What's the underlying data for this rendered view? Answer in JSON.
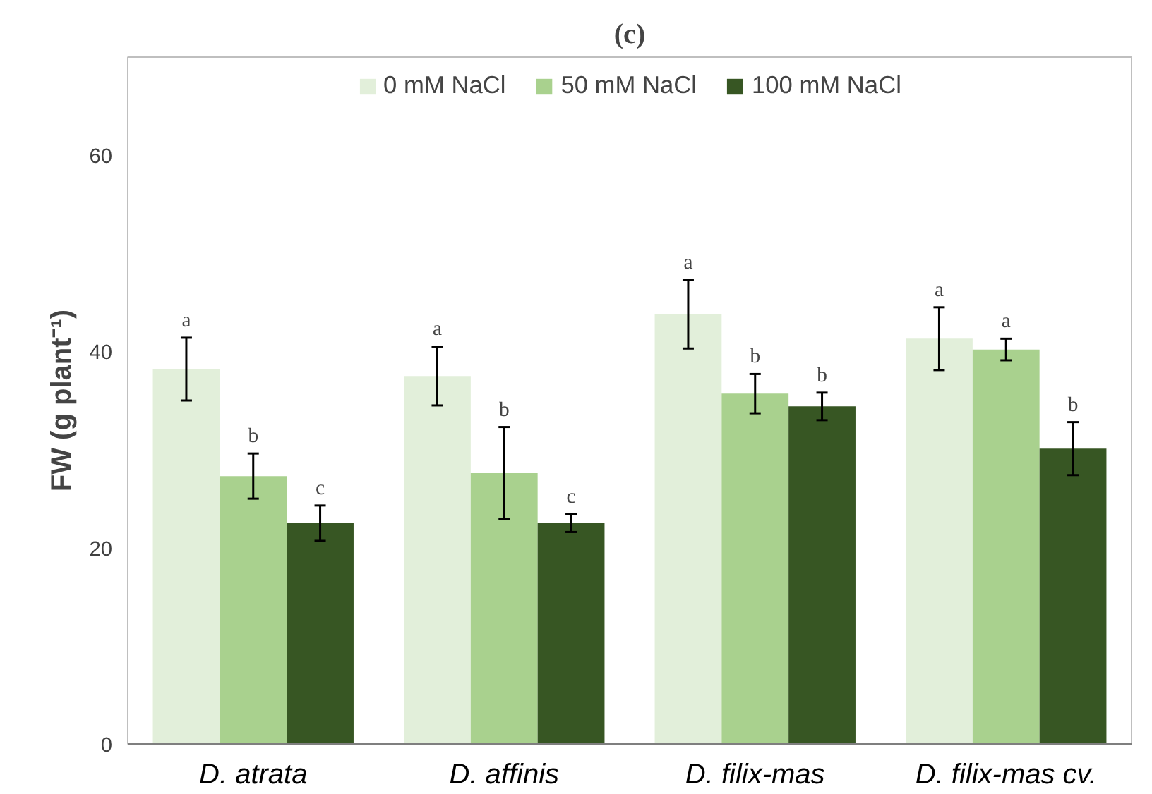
{
  "chart_data": {
    "type": "bar",
    "title": "(c)",
    "ylabel": "FW (g plant⁻¹)",
    "categories": [
      "D. atrata",
      "D. affinis",
      "D. filix-mas",
      "D. filix-mas cv."
    ],
    "series": [
      {
        "name": "0 mM NaCl",
        "color": "#e2efda",
        "values": [
          38.2,
          37.5,
          43.8,
          41.3
        ],
        "errors": [
          3.2,
          3.0,
          3.5,
          3.2
        ],
        "value_labels": [
          "a",
          "a",
          "a",
          "a"
        ]
      },
      {
        "name": "50 mM NaCl",
        "color": "#a9d18e",
        "values": [
          27.3,
          27.6,
          35.7,
          40.2
        ],
        "errors": [
          2.3,
          4.7,
          2.0,
          1.1
        ],
        "value_labels": [
          "b",
          "b",
          "b",
          "a"
        ]
      },
      {
        "name": "100 mM NaCl",
        "color": "#375623",
        "values": [
          22.5,
          22.5,
          34.4,
          30.1
        ],
        "errors": [
          1.8,
          0.9,
          1.4,
          2.7
        ],
        "value_labels": [
          "c",
          "c",
          "b",
          "b"
        ]
      }
    ],
    "ylim": [
      0,
      70
    ],
    "yticks": [
      0,
      20,
      40,
      60
    ],
    "grid": false,
    "legend": "top"
  }
}
